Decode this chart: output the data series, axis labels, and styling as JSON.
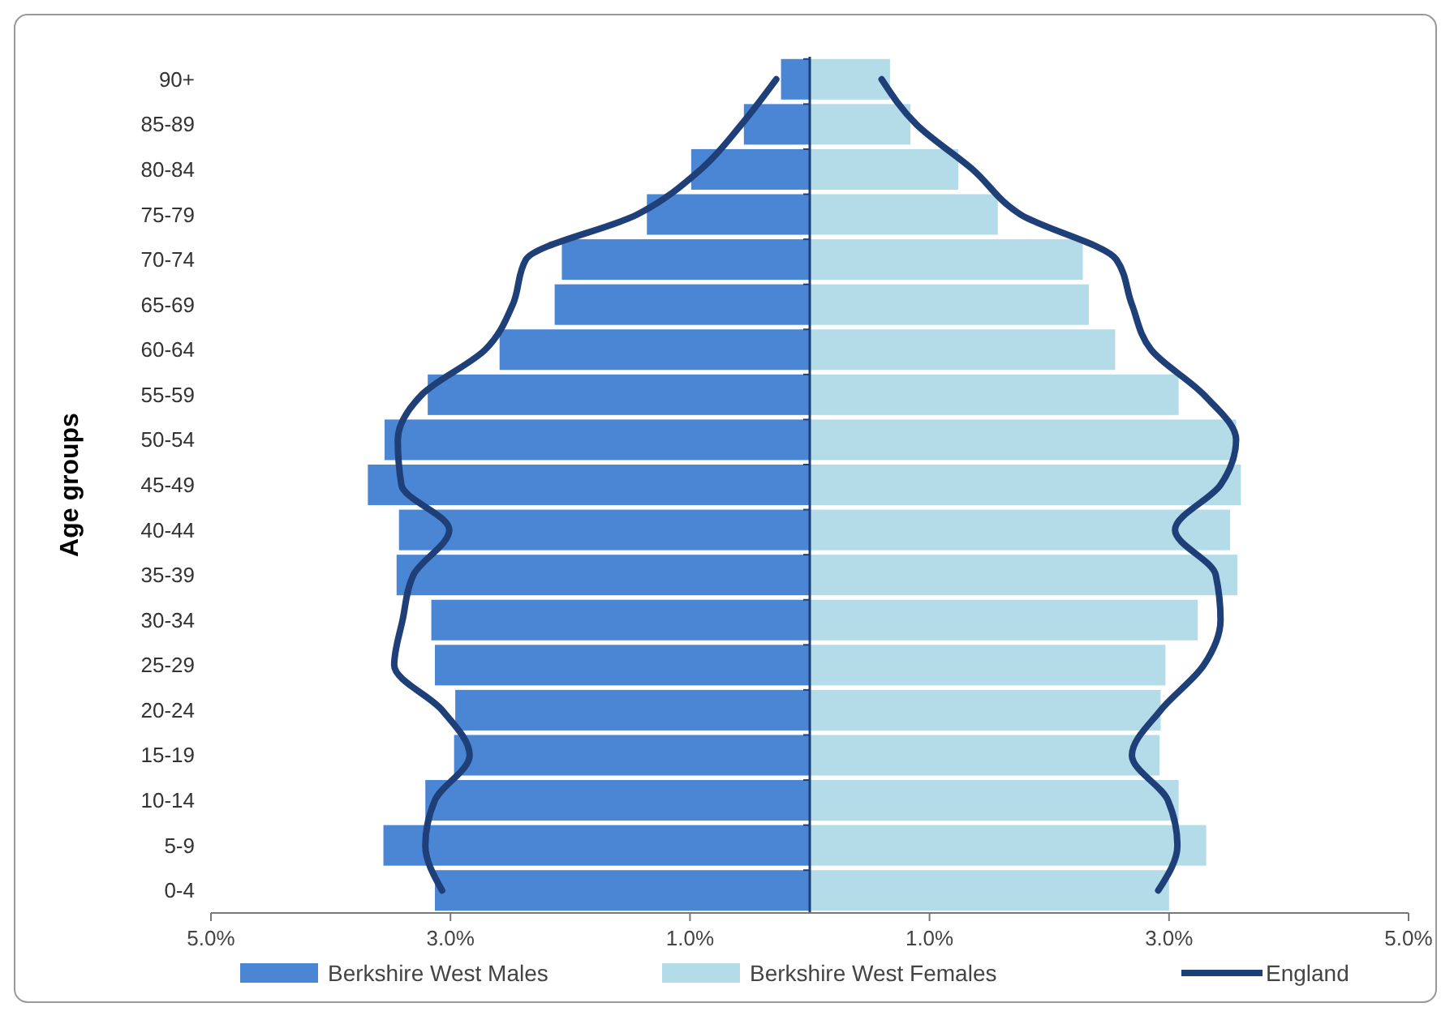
{
  "chart_data": {
    "type": "bar",
    "orientation": "horizontal",
    "stacked": true,
    "ref_lines": [
      {
        "axis": "x",
        "value": 0,
        "color": "#1f3f78"
      }
    ],
    "ylabel": "Age groups",
    "legend": "bottom",
    "categories": [
      "90+",
      "85-89",
      "80-84",
      "75-79",
      "70-74",
      "65-69",
      "60-64",
      "55-59",
      "50-54",
      "45-49",
      "40-44",
      "35-39",
      "30-34",
      "25-29",
      "20-24",
      "15-19",
      "10-14",
      "5-9",
      "0-4"
    ],
    "xlim": [
      -5,
      5
    ],
    "xticks": [
      {
        "value": -5,
        "label": "5.0%"
      },
      {
        "value": -3,
        "label": "3.0%"
      },
      {
        "value": -1,
        "label": "1.0%"
      },
      {
        "value": 1,
        "label": "1.0%"
      },
      {
        "value": 3,
        "label": "3.0%"
      },
      {
        "value": 5,
        "label": "5.0%"
      }
    ],
    "series": [
      {
        "name": "Berkshire West Males",
        "color": "#4a86d4",
        "values": [
          -0.24,
          -0.55,
          -0.99,
          -1.36,
          -2.07,
          -2.13,
          -2.59,
          -3.19,
          -3.55,
          -3.69,
          -3.43,
          -3.45,
          -3.16,
          -3.13,
          -2.96,
          -2.97,
          -3.21,
          -3.56,
          -3.13
        ]
      },
      {
        "name": "Berkshire West Females",
        "color": "#b4dbe8",
        "values": [
          0.67,
          0.84,
          1.24,
          1.57,
          2.28,
          2.33,
          2.55,
          3.08,
          3.56,
          3.6,
          3.51,
          3.57,
          3.24,
          2.97,
          2.93,
          2.92,
          3.08,
          3.31,
          3.0
        ]
      },
      {
        "name": "England",
        "type": "line",
        "color": "#1f3f78",
        "values": [
          -0.28,
          -0.57,
          -0.91,
          -1.44,
          -2.37,
          -2.48,
          -2.71,
          -3.24,
          -3.44,
          -3.41,
          -3.01,
          -3.31,
          -3.4,
          -3.47,
          -3.07,
          -2.84,
          -3.13,
          -3.21,
          -3.07
        ]
      },
      {
        "type": "line",
        "color": "#1f3f78",
        "values": [
          0.6,
          0.89,
          1.36,
          1.76,
          2.56,
          2.69,
          2.85,
          3.29,
          3.56,
          3.43,
          3.05,
          3.39,
          3.43,
          3.29,
          2.93,
          2.69,
          2.99,
          3.07,
          2.91
        ]
      }
    ]
  }
}
